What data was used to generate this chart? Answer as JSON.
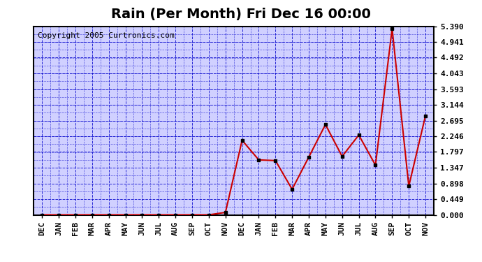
{
  "title": "Rain (Per Month) Fri Dec 16 00:00",
  "copyright": "Copyright 2005 Curtronics.com",
  "months": [
    "DEC",
    "JAN",
    "FEB",
    "MAR",
    "APR",
    "MAY",
    "JUN",
    "JUL",
    "AUG",
    "SEP",
    "OCT",
    "NOV",
    "DEC",
    "JAN",
    "FEB",
    "MAR",
    "APR",
    "MAY",
    "JUN",
    "JUL",
    "AUG",
    "SEP",
    "OCT",
    "NOV"
  ],
  "values": [
    0.0,
    0.0,
    0.0,
    0.0,
    0.0,
    0.0,
    0.0,
    0.0,
    0.0,
    0.0,
    0.0,
    0.07,
    2.13,
    1.57,
    1.55,
    0.73,
    1.65,
    2.58,
    1.67,
    2.28,
    1.42,
    5.32,
    0.82,
    2.83
  ],
  "line_color": "#cc0000",
  "marker_color": "#000000",
  "bg_color": "#d0d0ff",
  "grid_color": "#0000cc",
  "border_color": "#000000",
  "title_color": "#000000",
  "ymin": 0.0,
  "ymax": 5.39,
  "yticks": [
    0.0,
    0.449,
    0.898,
    1.347,
    1.797,
    2.246,
    2.695,
    3.144,
    3.593,
    4.043,
    4.492,
    4.941,
    5.39
  ],
  "title_fontsize": 14,
  "copyright_fontsize": 8,
  "tick_fontsize": 8
}
